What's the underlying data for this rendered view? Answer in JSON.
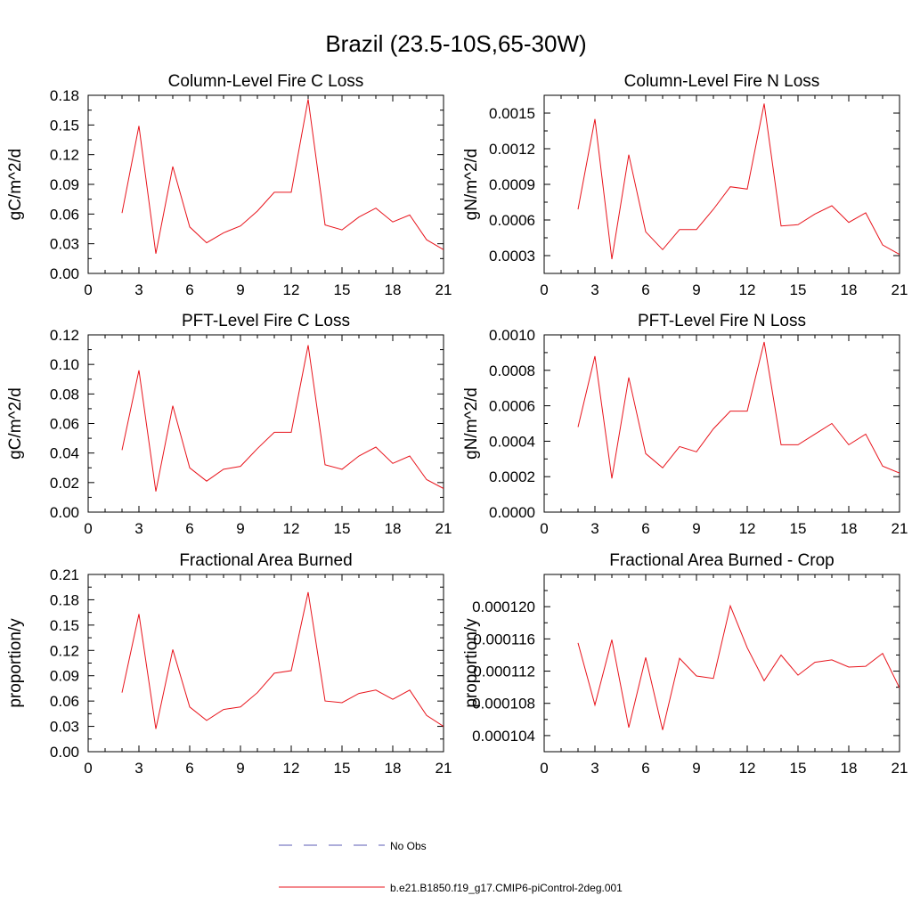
{
  "figure": {
    "title": "Brazil (23.5-10S,65-30W)",
    "line_color": "#e8141c",
    "obs_color": "#5b5bb5"
  },
  "legend": {
    "entries": [
      {
        "label": "No Obs",
        "style": "dashed",
        "color": "#5b5bb5"
      },
      {
        "label": "b.e21.B1850.f19_g17.CMIP6-piControl-2deg.001",
        "style": "solid",
        "color": "#e8141c"
      }
    ]
  },
  "chart_data": [
    {
      "type": "line",
      "title": "Column-Level Fire C Loss",
      "ylabel": "gC/m^2/d",
      "xlim": [
        0,
        21
      ],
      "ylim": [
        0,
        0.18
      ],
      "xticks": [
        "0",
        "3",
        "6",
        "9",
        "12",
        "15",
        "18",
        "21"
      ],
      "yticks": [
        "0.00",
        "0.03",
        "0.06",
        "0.09",
        "0.12",
        "0.15",
        "0.18"
      ],
      "x": [
        2,
        3,
        4,
        5,
        6,
        7,
        8,
        9,
        10,
        11,
        12,
        13,
        14,
        15,
        16,
        17,
        18,
        19,
        20,
        21
      ],
      "series": [
        {
          "values": [
            0.061,
            0.149,
            0.02,
            0.108,
            0.047,
            0.031,
            0.041,
            0.048,
            0.063,
            0.082,
            0.082,
            0.176,
            0.049,
            0.044,
            0.057,
            0.066,
            0.052,
            0.059,
            0.034,
            0.024
          ]
        }
      ]
    },
    {
      "type": "line",
      "title": "Column-Level Fire N Loss",
      "ylabel": "gN/m^2/d",
      "xlim": [
        0,
        21
      ],
      "ylim": [
        0.00015,
        0.00165
      ],
      "xticks": [
        "0",
        "3",
        "6",
        "9",
        "12",
        "15",
        "18",
        "21"
      ],
      "yticks": [
        "0.0003",
        "0.0006",
        "0.0009",
        "0.0012",
        "0.0015"
      ],
      "x": [
        2,
        3,
        4,
        5,
        6,
        7,
        8,
        9,
        10,
        11,
        12,
        13,
        14,
        15,
        16,
        17,
        18,
        19,
        20,
        21
      ],
      "series": [
        {
          "values": [
            0.00069,
            0.00145,
            0.00027,
            0.00115,
            0.0005,
            0.00035,
            0.00052,
            0.00052,
            0.00069,
            0.00088,
            0.00086,
            0.00158,
            0.00055,
            0.00056,
            0.00065,
            0.00072,
            0.00058,
            0.00066,
            0.00039,
            0.00031
          ]
        }
      ]
    },
    {
      "type": "line",
      "title": "PFT-Level Fire C Loss",
      "ylabel": "gC/m^2/d",
      "xlim": [
        0,
        21
      ],
      "ylim": [
        0,
        0.12
      ],
      "xticks": [
        "0",
        "3",
        "6",
        "9",
        "12",
        "15",
        "18",
        "21"
      ],
      "yticks": [
        "0.00",
        "0.02",
        "0.04",
        "0.06",
        "0.08",
        "0.10",
        "0.12"
      ],
      "x": [
        2,
        3,
        4,
        5,
        6,
        7,
        8,
        9,
        10,
        11,
        12,
        13,
        14,
        15,
        16,
        17,
        18,
        19,
        20,
        21
      ],
      "series": [
        {
          "values": [
            0.042,
            0.096,
            0.014,
            0.072,
            0.03,
            0.021,
            0.029,
            0.031,
            0.043,
            0.054,
            0.054,
            0.113,
            0.032,
            0.029,
            0.038,
            0.044,
            0.033,
            0.038,
            0.022,
            0.016
          ]
        }
      ]
    },
    {
      "type": "line",
      "title": "PFT-Level Fire N Loss",
      "ylabel": "gN/m^2/d",
      "xlim": [
        0,
        21
      ],
      "ylim": [
        0,
        0.001
      ],
      "xticks": [
        "0",
        "3",
        "6",
        "9",
        "12",
        "15",
        "18",
        "21"
      ],
      "yticks": [
        "0.0000",
        "0.0002",
        "0.0004",
        "0.0006",
        "0.0008",
        "0.0010"
      ],
      "x": [
        2,
        3,
        4,
        5,
        6,
        7,
        8,
        9,
        10,
        11,
        12,
        13,
        14,
        15,
        16,
        17,
        18,
        19,
        20,
        21
      ],
      "series": [
        {
          "values": [
            0.00048,
            0.00088,
            0.00019,
            0.00076,
            0.00033,
            0.00025,
            0.00037,
            0.00034,
            0.00047,
            0.00057,
            0.00057,
            0.00096,
            0.00038,
            0.00038,
            0.00044,
            0.0005,
            0.00038,
            0.00044,
            0.00026,
            0.00022
          ]
        }
      ]
    },
    {
      "type": "line",
      "title": "Fractional Area Burned",
      "ylabel": "proportion/y",
      "xlim": [
        0,
        21
      ],
      "ylim": [
        0,
        0.21
      ],
      "xticks": [
        "0",
        "3",
        "6",
        "9",
        "12",
        "15",
        "18",
        "21"
      ],
      "yticks": [
        "0.00",
        "0.03",
        "0.06",
        "0.09",
        "0.12",
        "0.15",
        "0.18",
        "0.21"
      ],
      "x": [
        2,
        3,
        4,
        5,
        6,
        7,
        8,
        9,
        10,
        11,
        12,
        13,
        14,
        15,
        16,
        17,
        18,
        19,
        20,
        21
      ],
      "series": [
        {
          "values": [
            0.07,
            0.163,
            0.027,
            0.121,
            0.053,
            0.037,
            0.05,
            0.053,
            0.07,
            0.093,
            0.096,
            0.189,
            0.06,
            0.058,
            0.069,
            0.073,
            0.062,
            0.073,
            0.043,
            0.03
          ]
        }
      ]
    },
    {
      "type": "line",
      "title": "Fractional Area Burned - Crop",
      "ylabel": "proportion/y",
      "xlim": [
        0,
        21
      ],
      "ylim": [
        0.000102,
        0.000124
      ],
      "xticks": [
        "0",
        "3",
        "6",
        "9",
        "12",
        "15",
        "18",
        "21"
      ],
      "yticks": [
        "0.000104",
        "0.000108",
        "0.000112",
        "0.000116",
        "0.000120"
      ],
      "x": [
        2,
        3,
        4,
        5,
        6,
        7,
        8,
        9,
        10,
        11,
        12,
        13,
        14,
        15,
        16,
        17,
        18,
        19,
        20,
        21
      ],
      "series": [
        {
          "values": [
            0.0001155,
            0.0001078,
            0.0001159,
            0.000105,
            0.0001137,
            0.0001047,
            0.0001136,
            0.0001114,
            0.0001111,
            0.0001201,
            0.0001149,
            0.0001108,
            0.000114,
            0.0001115,
            0.0001131,
            0.0001134,
            0.0001125,
            0.0001126,
            0.0001142,
            0.0001099
          ]
        }
      ]
    }
  ]
}
